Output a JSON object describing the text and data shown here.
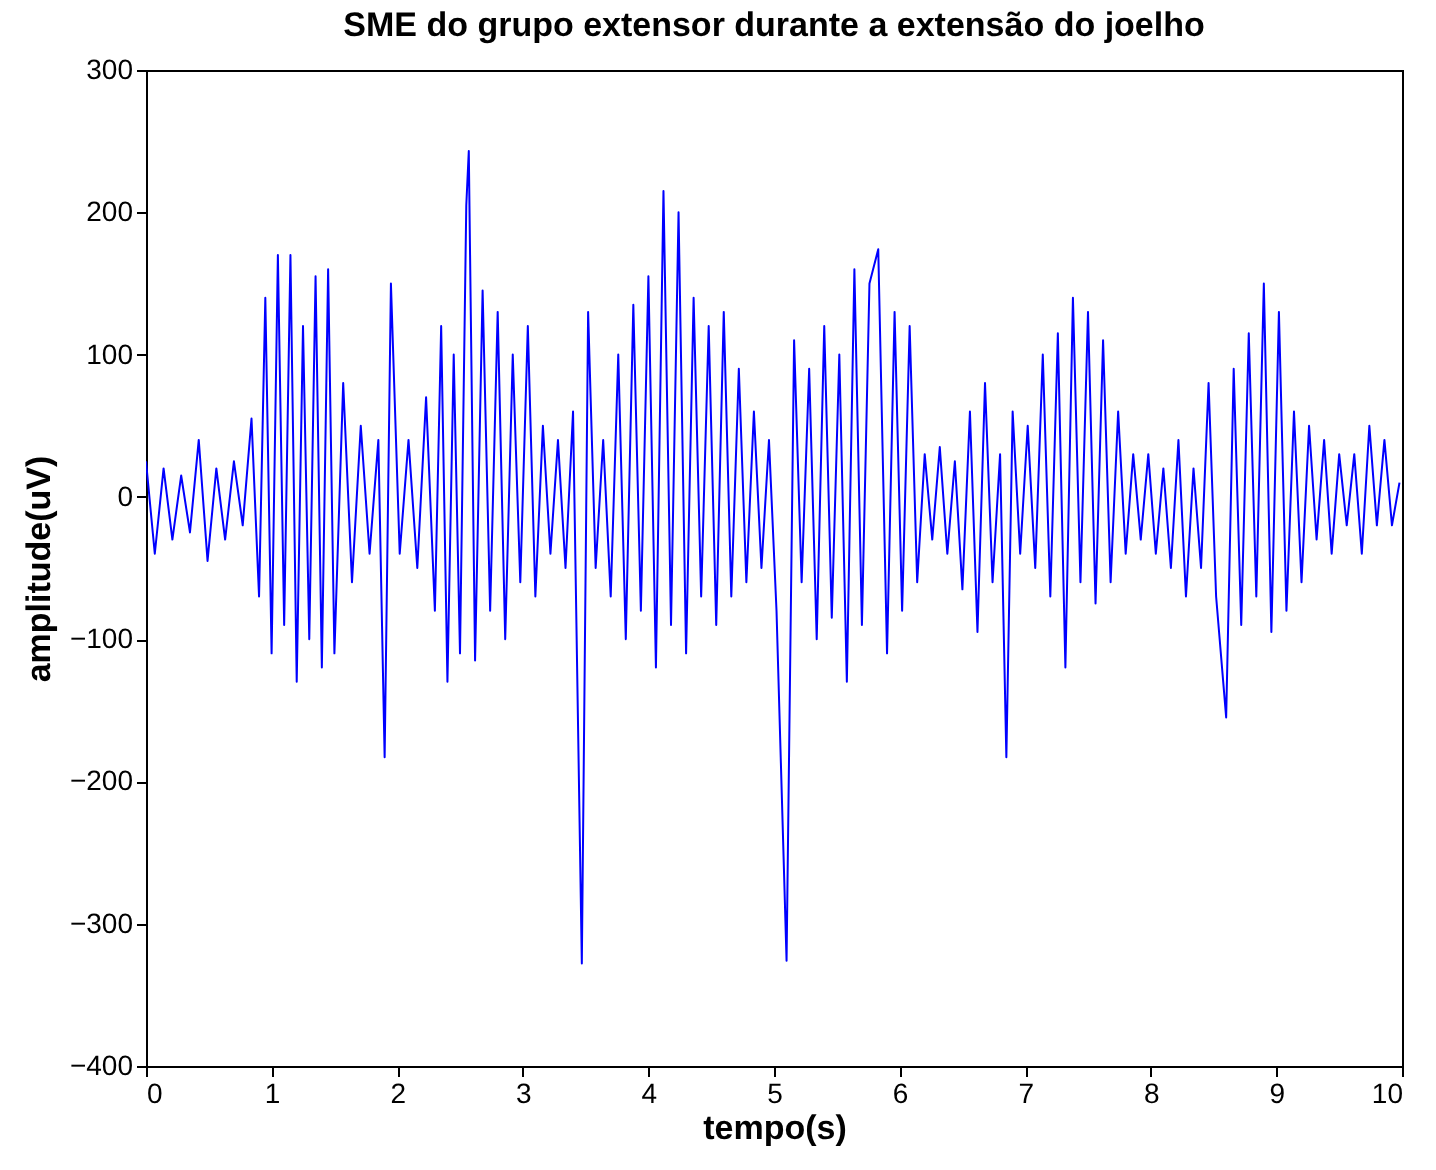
{
  "chart_data": {
    "type": "line",
    "title": "SME do grupo extensor durante a extensão do joelho",
    "xlabel": "tempo(s)",
    "ylabel": "amplitude(uV)",
    "x": [
      0,
      0.07,
      0.14,
      0.21,
      0.28,
      0.35,
      0.42,
      0.49,
      0.56,
      0.63,
      0.7,
      0.77,
      0.84,
      0.9,
      0.95,
      1.0,
      1.05,
      1.1,
      1.15,
      1.2,
      1.25,
      1.3,
      1.35,
      1.4,
      1.45,
      1.5,
      1.57,
      1.64,
      1.71,
      1.78,
      1.85,
      1.9,
      1.95,
      2.02,
      2.09,
      2.16,
      2.23,
      2.3,
      2.35,
      2.4,
      2.45,
      2.5,
      2.55,
      2.57,
      2.62,
      2.68,
      2.74,
      2.8,
      2.86,
      2.92,
      2.98,
      3.04,
      3.1,
      3.16,
      3.22,
      3.28,
      3.34,
      3.4,
      3.47,
      3.52,
      3.58,
      3.64,
      3.7,
      3.76,
      3.82,
      3.88,
      3.94,
      4.0,
      4.06,
      4.12,
      4.18,
      4.24,
      4.3,
      4.36,
      4.42,
      4.48,
      4.54,
      4.6,
      4.66,
      4.72,
      4.78,
      4.84,
      4.9,
      4.96,
      5.02,
      5.1,
      5.16,
      5.22,
      5.28,
      5.34,
      5.4,
      5.46,
      5.52,
      5.58,
      5.64,
      5.7,
      5.76,
      5.83,
      5.9,
      5.96,
      6.02,
      6.08,
      6.14,
      6.2,
      6.26,
      6.32,
      6.38,
      6.44,
      6.5,
      6.56,
      6.62,
      6.68,
      6.74,
      6.8,
      6.85,
      6.9,
      6.96,
      7.02,
      7.08,
      7.14,
      7.2,
      7.26,
      7.32,
      7.38,
      7.44,
      7.5,
      7.56,
      7.62,
      7.68,
      7.74,
      7.8,
      7.86,
      7.92,
      7.98,
      8.04,
      8.1,
      8.16,
      8.22,
      8.28,
      8.34,
      8.4,
      8.46,
      8.52,
      8.6,
      8.66,
      8.72,
      8.78,
      8.84,
      8.9,
      8.96,
      9.02,
      9.08,
      9.14,
      9.2,
      9.26,
      9.32,
      9.38,
      9.44,
      9.5,
      9.56,
      9.62,
      9.68,
      9.74,
      9.8,
      9.86,
      9.92,
      9.98
    ],
    "series": [
      {
        "color": "#0000ff",
        "values": [
          25,
          -40,
          20,
          -30,
          15,
          -25,
          40,
          -45,
          20,
          -30,
          25,
          -20,
          55,
          -70,
          140,
          -110,
          170,
          -90,
          170,
          -130,
          120,
          -100,
          155,
          -120,
          160,
          -110,
          80,
          -60,
          50,
          -40,
          40,
          -183,
          150,
          -40,
          40,
          -50,
          70,
          -80,
          120,
          -130,
          100,
          -110,
          205,
          243,
          -115,
          145,
          -80,
          130,
          -100,
          100,
          -60,
          120,
          -70,
          50,
          -40,
          40,
          -50,
          60,
          -328,
          130,
          -50,
          40,
          -70,
          100,
          -100,
          135,
          -80,
          155,
          -120,
          215,
          -90,
          200,
          -110,
          140,
          -70,
          120,
          -90,
          130,
          -70,
          90,
          -60,
          60,
          -50,
          40,
          -80,
          -326,
          110,
          -60,
          90,
          -100,
          120,
          -85,
          100,
          -130,
          160,
          -90,
          150,
          174,
          -110,
          130,
          -80,
          120,
          -60,
          30,
          -30,
          35,
          -40,
          25,
          -65,
          60,
          -95,
          80,
          -60,
          30,
          -183,
          60,
          -40,
          50,
          -50,
          100,
          -70,
          115,
          -120,
          140,
          -60,
          130,
          -75,
          110,
          -60,
          60,
          -40,
          30,
          -30,
          30,
          -40,
          20,
          -50,
          40,
          -70,
          20,
          -50,
          80,
          -70,
          -155,
          90,
          -90,
          115,
          -70,
          150,
          -95,
          130,
          -80,
          60,
          -60,
          50,
          -30,
          40,
          -40,
          30,
          -20,
          30,
          -40,
          50,
          -20,
          40,
          -20,
          10
        ]
      }
    ],
    "xlim": [
      0,
      10
    ],
    "ylim": [
      -400,
      300
    ],
    "xticks": [
      0,
      1,
      2,
      3,
      4,
      5,
      6,
      7,
      8,
      9,
      10
    ],
    "yticks": [
      -400,
      -300,
      -200,
      -100,
      0,
      100,
      200,
      300
    ],
    "grid": false,
    "marker": "none",
    "line_style": "solid"
  }
}
